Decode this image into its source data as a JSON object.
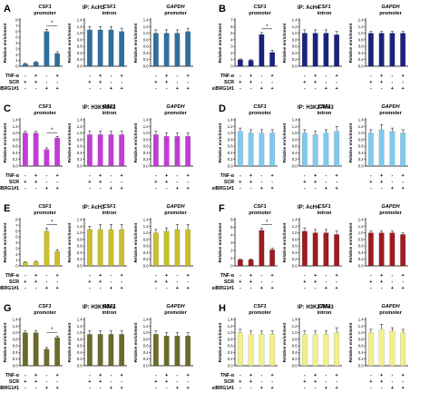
{
  "panels": [
    {
      "letter": "A",
      "ip": "IP: AcH3",
      "color": "#2f6f9f"
    },
    {
      "letter": "B",
      "ip": "IP: AcH4",
      "color": "#1a237e"
    },
    {
      "letter": "C",
      "ip": "IP: H3K9Me2",
      "color": "#c43bd8"
    },
    {
      "letter": "D",
      "ip": "IP: H3K27Me3",
      "color": "#7fcbf0"
    },
    {
      "letter": "E",
      "ip": "IP: AcH3",
      "color": "#c9c02a"
    },
    {
      "letter": "F",
      "ip": "IP: AcH4",
      "color": "#9e1b20"
    },
    {
      "letter": "G",
      "ip": "IP: H3K9Me2",
      "color": "#6b6b2a"
    },
    {
      "letter": "H",
      "ip": "IP: H3K27Me3",
      "color": "#f3f08a"
    }
  ],
  "row_labels": {
    "tnf": "TNF-α",
    "scr": "SCR",
    "sibrg": "siBRG1#1"
  },
  "condition_signs": {
    "tnf": [
      "-",
      "+",
      "-",
      "+"
    ],
    "scr": [
      "+",
      "+",
      "-",
      "-"
    ],
    "sibrg": [
      "-",
      "-",
      "+",
      "+"
    ]
  },
  "ylabel": "Relative enrichment",
  "chart_data": [
    {
      "panel": "A",
      "type": "bar",
      "title": [
        "CSF1",
        "promoter"
      ],
      "ylabel": "Relative enrichment",
      "ylim": [
        0,
        8
      ],
      "yticks": [
        0,
        1,
        2,
        3,
        4,
        5,
        6,
        7,
        8
      ],
      "values": [
        0.4,
        0.7,
        6.0,
        2.2
      ],
      "errors": [
        0.1,
        0.1,
        0.4,
        0.3
      ],
      "significance": "*"
    },
    {
      "panel": "A",
      "type": "bar",
      "title": [
        "CSF1",
        "intron"
      ],
      "ylabel": "Relative enrichment",
      "ylim": [
        0,
        1.4
      ],
      "yticks": [
        0,
        0.2,
        0.4,
        0.6,
        0.8,
        1.0,
        1.2,
        1.4
      ],
      "values": [
        1.1,
        1.1,
        1.1,
        1.05
      ],
      "errors": [
        0.1,
        0.1,
        0.1,
        0.1
      ]
    },
    {
      "panel": "A",
      "type": "bar",
      "title": [
        "GAPDH",
        "promoter"
      ],
      "ylabel": "Relative enrichment",
      "ylim": [
        0,
        1.4
      ],
      "yticks": [
        0,
        0.2,
        0.4,
        0.6,
        0.8,
        1.0,
        1.2,
        1.4
      ],
      "values": [
        1.0,
        1.0,
        1.0,
        1.05
      ],
      "errors": [
        0.1,
        0.1,
        0.1,
        0.1
      ]
    },
    {
      "panel": "B",
      "type": "bar",
      "title": [
        "CSF1",
        "promoter"
      ],
      "ylabel": "Relative enrichment",
      "ylim": [
        0,
        7
      ],
      "yticks": [
        0,
        1,
        2,
        3,
        4,
        5,
        6,
        7
      ],
      "values": [
        1.0,
        0.9,
        4.8,
        2.1
      ],
      "errors": [
        0.1,
        0.1,
        0.3,
        0.3
      ],
      "significance": "*"
    },
    {
      "panel": "B",
      "type": "bar",
      "title": [
        "CSF1",
        "intron"
      ],
      "ylabel": "Relative enrichment",
      "ylim": [
        0,
        1.4
      ],
      "yticks": [
        0,
        0.2,
        0.4,
        0.6,
        0.8,
        1.0,
        1.2,
        1.4
      ],
      "values": [
        1.0,
        1.0,
        1.0,
        0.95
      ],
      "errors": [
        0.1,
        0.1,
        0.1,
        0.1
      ]
    },
    {
      "panel": "B",
      "type": "bar",
      "title": [
        "GAPDH",
        "promoter"
      ],
      "ylabel": "Relative enrichment",
      "ylim": [
        0,
        1.4
      ],
      "yticks": [
        0,
        0.2,
        0.4,
        0.6,
        0.8,
        1.0,
        1.2,
        1.4
      ],
      "values": [
        1.0,
        1.0,
        1.0,
        1.0
      ],
      "errors": [
        0.05,
        0.05,
        0.05,
        0.05
      ]
    },
    {
      "panel": "C",
      "type": "bar",
      "title": [
        "CSF1",
        "promoter"
      ],
      "ylabel": "Relative enrichment",
      "ylim": [
        0,
        1.4
      ],
      "yticks": [
        0,
        0.2,
        0.4,
        0.6,
        0.8,
        1.0,
        1.2,
        1.4
      ],
      "values": [
        1.0,
        1.0,
        0.5,
        0.85
      ],
      "errors": [
        0.05,
        0.05,
        0.05,
        0.05
      ],
      "significance": "*"
    },
    {
      "panel": "C",
      "type": "bar",
      "title": [
        "CSF1",
        "intron"
      ],
      "ylabel": "Relative enrichment",
      "ylim": [
        0,
        1.4
      ],
      "yticks": [
        0,
        0.2,
        0.4,
        0.6,
        0.8,
        1.0,
        1.2,
        1.4
      ],
      "values": [
        0.95,
        0.95,
        0.95,
        0.95
      ],
      "errors": [
        0.1,
        0.1,
        0.1,
        0.1
      ]
    },
    {
      "panel": "C",
      "type": "bar",
      "title": [
        "GAPDH",
        "promoter"
      ],
      "ylabel": "Relative enrichment",
      "ylim": [
        0,
        1.4
      ],
      "yticks": [
        0,
        0.2,
        0.4,
        0.6,
        0.8,
        1.0,
        1.2,
        1.4
      ],
      "values": [
        0.95,
        0.9,
        0.9,
        0.9
      ],
      "errors": [
        0.1,
        0.1,
        0.1,
        0.1
      ]
    },
    {
      "panel": "D",
      "type": "bar",
      "title": [
        "CSF1",
        "promoter"
      ],
      "ylabel": "Relative enrichment",
      "ylim": [
        0,
        1.4
      ],
      "yticks": [
        0,
        0.2,
        0.4,
        0.6,
        0.8,
        1.0,
        1.2,
        1.4
      ],
      "values": [
        1.05,
        1.0,
        1.0,
        1.0
      ],
      "errors": [
        0.1,
        0.1,
        0.1,
        0.1
      ]
    },
    {
      "panel": "D",
      "type": "bar",
      "title": [
        "CSF1",
        "intron"
      ],
      "ylabel": "Relative enrichment",
      "ylim": [
        0,
        1.4
      ],
      "yticks": [
        0,
        0.2,
        0.4,
        0.6,
        0.8,
        1.0,
        1.2,
        1.4
      ],
      "values": [
        1.0,
        0.95,
        1.0,
        1.05
      ],
      "errors": [
        0.1,
        0.1,
        0.1,
        0.15
      ]
    },
    {
      "panel": "D",
      "type": "bar",
      "title": [
        "GAPDH",
        "promoter"
      ],
      "ylabel": "Relative enrichment",
      "ylim": [
        0,
        1.4
      ],
      "yticks": [
        0,
        0.2,
        0.4,
        0.6,
        0.8,
        1.0,
        1.2,
        1.4
      ],
      "values": [
        1.0,
        1.1,
        1.05,
        1.0
      ],
      "errors": [
        0.1,
        0.15,
        0.1,
        0.1
      ]
    },
    {
      "panel": "E",
      "type": "bar",
      "title": [
        "CSF1",
        "promoter"
      ],
      "ylabel": "Relative enrichment",
      "ylim": [
        0,
        8
      ],
      "yticks": [
        0,
        1,
        2,
        3,
        4,
        5,
        6,
        7,
        8
      ],
      "values": [
        0.6,
        0.7,
        6.0,
        2.5
      ],
      "errors": [
        0.1,
        0.1,
        0.5,
        0.3
      ],
      "significance": "*"
    },
    {
      "panel": "E",
      "type": "bar",
      "title": [
        "CSF1",
        "intron"
      ],
      "ylabel": "Relative enrichment",
      "ylim": [
        0,
        1.4
      ],
      "yticks": [
        0,
        0.2,
        0.4,
        0.6,
        0.8,
        1.0,
        1.2,
        1.4
      ],
      "values": [
        1.1,
        1.1,
        1.1,
        1.1
      ],
      "errors": [
        0.1,
        0.15,
        0.15,
        0.15
      ]
    },
    {
      "panel": "E",
      "type": "bar",
      "title": [
        "GAPDH",
        "promoter"
      ],
      "ylabel": "Relative enrichment",
      "ylim": [
        0,
        1.4
      ],
      "yticks": [
        0,
        0.2,
        0.4,
        0.6,
        0.8,
        1.0,
        1.2,
        1.4
      ],
      "values": [
        1.0,
        1.05,
        1.1,
        1.1
      ],
      "errors": [
        0.1,
        0.1,
        0.15,
        0.15
      ]
    },
    {
      "panel": "F",
      "type": "bar",
      "title": [
        "CSF1",
        "promoter"
      ],
      "ylabel": "Relative enrichment",
      "ylim": [
        0,
        6
      ],
      "yticks": [
        0,
        1,
        2,
        3,
        4,
        5,
        6
      ],
      "values": [
        0.8,
        0.8,
        4.6,
        2.1
      ],
      "errors": [
        0.1,
        0.1,
        0.3,
        0.2
      ],
      "significance": "*"
    },
    {
      "panel": "F",
      "type": "bar",
      "title": [
        "CSF1",
        "intron"
      ],
      "ylabel": "Relative enrichment",
      "ylim": [
        0,
        1.4
      ],
      "yticks": [
        0,
        0.2,
        0.4,
        0.6,
        0.8,
        1.0,
        1.2,
        1.4
      ],
      "values": [
        1.05,
        1.0,
        1.0,
        0.95
      ],
      "errors": [
        0.1,
        0.1,
        0.1,
        0.1
      ]
    },
    {
      "panel": "F",
      "type": "bar",
      "title": [
        "GAPDH",
        "promoter"
      ],
      "ylabel": "Relative enrichment",
      "ylim": [
        0,
        1.4
      ],
      "yticks": [
        0,
        0.2,
        0.4,
        0.6,
        0.8,
        1.0,
        1.2,
        1.4
      ],
      "values": [
        1.0,
        1.0,
        1.0,
        0.95
      ],
      "errors": [
        0.05,
        0.05,
        0.05,
        0.05
      ]
    },
    {
      "panel": "G",
      "type": "bar",
      "title": [
        "CSF1",
        "promoter"
      ],
      "ylabel": "Relative enrichment",
      "ylim": [
        0,
        1.4
      ],
      "yticks": [
        0,
        0.2,
        0.4,
        0.6,
        0.8,
        1.0,
        1.2,
        1.4
      ],
      "values": [
        1.0,
        1.0,
        0.5,
        0.85
      ],
      "errors": [
        0.05,
        0.05,
        0.05,
        0.05
      ],
      "significance": "*"
    },
    {
      "panel": "G",
      "type": "bar",
      "title": [
        "CSF1",
        "intron"
      ],
      "ylabel": "Relative enrichment",
      "ylim": [
        0,
        1.4
      ],
      "yticks": [
        0,
        0.2,
        0.4,
        0.6,
        0.8,
        1.0,
        1.2,
        1.4
      ],
      "values": [
        0.95,
        0.95,
        0.95,
        0.95
      ],
      "errors": [
        0.1,
        0.1,
        0.1,
        0.1
      ]
    },
    {
      "panel": "G",
      "type": "bar",
      "title": [
        "GAPDH",
        "promoter"
      ],
      "ylabel": "Relative enrichment",
      "ylim": [
        0,
        1.4
      ],
      "yticks": [
        0,
        0.2,
        0.4,
        0.6,
        0.8,
        1.0,
        1.2,
        1.4
      ],
      "values": [
        0.95,
        0.9,
        0.9,
        0.9
      ],
      "errors": [
        0.1,
        0.1,
        0.1,
        0.1
      ]
    },
    {
      "panel": "H",
      "type": "bar",
      "title": [
        "CSF1",
        "promoter"
      ],
      "ylabel": "Relative enrichment",
      "ylim": [
        0,
        1.4
      ],
      "yticks": [
        0,
        0.2,
        0.4,
        0.6,
        0.8,
        1.0,
        1.2,
        1.4
      ],
      "values": [
        1.0,
        0.95,
        0.95,
        0.95
      ],
      "errors": [
        0.1,
        0.1,
        0.1,
        0.1
      ]
    },
    {
      "panel": "H",
      "type": "bar",
      "title": [
        "CSF1",
        "intron"
      ],
      "ylabel": "Relative enrichment",
      "ylim": [
        0,
        1.4
      ],
      "yticks": [
        0,
        0.2,
        0.4,
        0.6,
        0.8,
        1.0,
        1.2,
        1.4
      ],
      "values": [
        0.95,
        0.95,
        0.95,
        1.0
      ],
      "errors": [
        0.1,
        0.1,
        0.1,
        0.15
      ]
    },
    {
      "panel": "H",
      "type": "bar",
      "title": [
        "GAPDH",
        "promoter"
      ],
      "ylabel": "Relative enrichment",
      "ylim": [
        0,
        1.4
      ],
      "yticks": [
        0,
        0.2,
        0.4,
        0.6,
        0.8,
        1.0,
        1.2,
        1.4
      ],
      "values": [
        1.0,
        1.1,
        1.05,
        1.0
      ],
      "errors": [
        0.1,
        0.15,
        0.1,
        0.1
      ]
    }
  ]
}
